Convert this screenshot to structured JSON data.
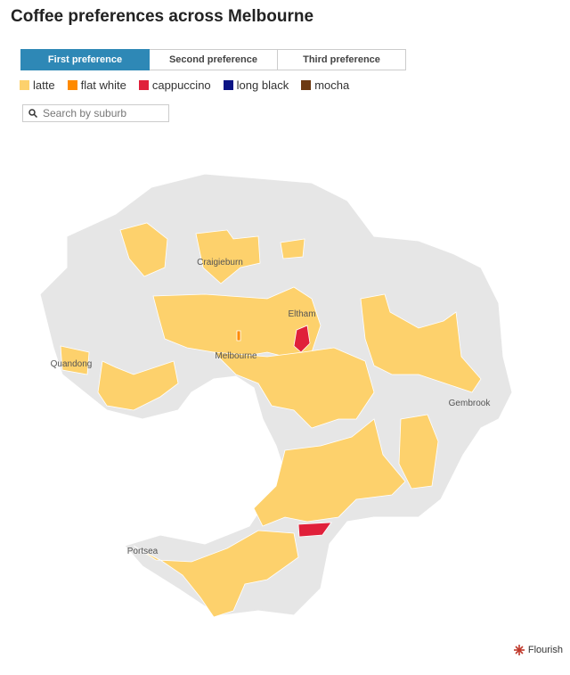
{
  "title": "Coffee preferences across Melbourne",
  "tabs": [
    {
      "label": "First preference",
      "active": true
    },
    {
      "label": "Second preference",
      "active": false
    },
    {
      "label": "Third preference",
      "active": false
    }
  ],
  "legend": [
    {
      "label": "latte",
      "color": "#fdd16c"
    },
    {
      "label": "flat white",
      "color": "#ff8a00"
    },
    {
      "label": "cappuccino",
      "color": "#e0203a"
    },
    {
      "label": "long black",
      "color": "#0b1485"
    },
    {
      "label": "mocha",
      "color": "#6d3a12"
    }
  ],
  "search": {
    "placeholder": "Search by suburb"
  },
  "map": {
    "places": [
      {
        "label": "Craigieburn"
      },
      {
        "label": "Eltham"
      },
      {
        "label": "Quandong"
      },
      {
        "label": "Melbourne"
      },
      {
        "label": "Gembrook"
      },
      {
        "label": "Portsea"
      }
    ]
  },
  "footer": {
    "credit": "Flourish"
  }
}
